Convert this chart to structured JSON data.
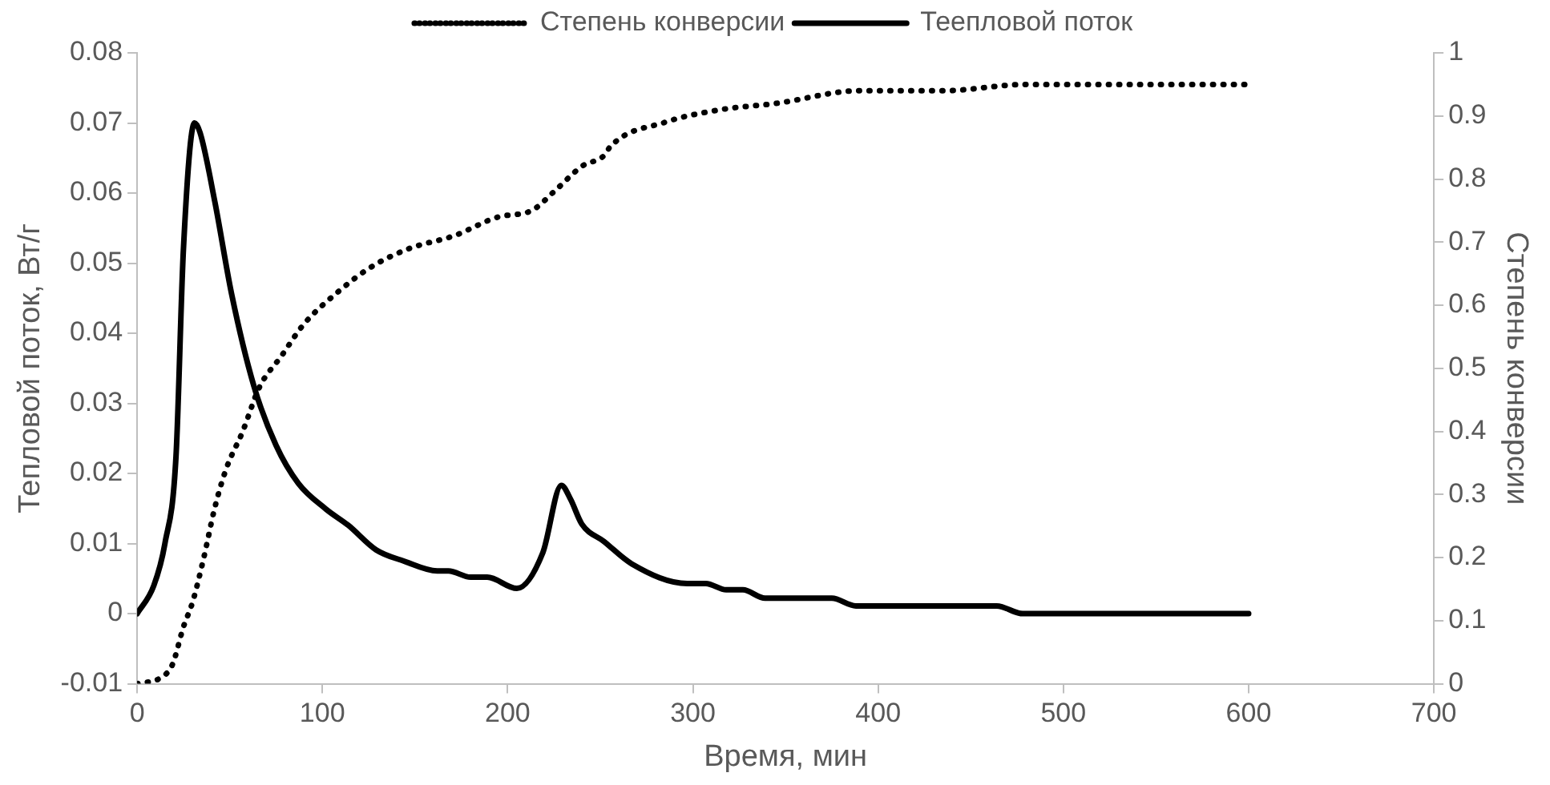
{
  "chart_data": {
    "type": "line",
    "xlabel": "Время, мин",
    "ylabel": "Тепловой поток, Вт/г",
    "y2label": "Степень конверсии",
    "xlim": [
      0,
      700
    ],
    "xticks": [
      0,
      100,
      200,
      300,
      400,
      500,
      600,
      700
    ],
    "ylim": [
      -0.01,
      0.08
    ],
    "yticks": [
      -0.01,
      0,
      0.01,
      0.02,
      0.03,
      0.04,
      0.05,
      0.06,
      0.07,
      0.08
    ],
    "y2lim": [
      0,
      1
    ],
    "y2ticks": [
      0,
      0.1,
      0.2,
      0.3,
      0.4,
      0.5,
      0.6,
      0.7,
      0.8,
      0.9,
      1
    ],
    "grid": false,
    "legend": "top",
    "marker": "none",
    "series": [
      {
        "name": "Степень конверсии",
        "color": "#000000",
        "axis": "y2",
        "line_style": "dotted",
        "x": [
          0,
          13,
          19,
          25,
          30,
          36,
          42,
          48,
          57,
          66,
          78,
          90,
          108,
          126,
          147,
          171,
          195,
          213,
          225,
          240,
          253,
          255,
          285,
          315,
          345,
          390,
          435,
          480,
          600
        ],
        "values": [
          0,
          0.01,
          0.03,
          0.09,
          0.13,
          0.2,
          0.28,
          0.34,
          0.4,
          0.47,
          0.52,
          0.57,
          0.62,
          0.66,
          0.69,
          0.71,
          0.74,
          0.75,
          0.78,
          0.82,
          0.84,
          0.85,
          0.89,
          0.91,
          0.92,
          0.94,
          0.94,
          0.95,
          0.95
        ]
      },
      {
        "name": "Теепловой поток",
        "color": "#000000",
        "axis": "y",
        "line_style": "solid",
        "x": [
          0,
          9,
          15,
          21,
          25,
          31,
          34,
          42,
          51,
          63,
          75,
          87,
          102,
          114,
          129,
          144,
          162,
          168,
          180,
          189,
          205,
          219,
          229,
          234,
          240,
          252,
          267,
          297,
          307,
          318,
          327,
          339,
          375,
          388,
          464,
          478,
          600
        ],
        "values": [
          0,
          0.004,
          0.01,
          0.0225,
          0.052,
          0.07,
          0.0686,
          0.0587,
          0.0456,
          0.0325,
          0.024,
          0.0186,
          0.0149,
          0.0126,
          0.0091,
          0.0075,
          0.0061,
          0.0061,
          0.0052,
          0.0052,
          0.0036,
          0.0087,
          0.0183,
          0.0163,
          0.0128,
          0.0103,
          0.0071,
          0.0043,
          0.0043,
          0.0034,
          0.0034,
          0.0022,
          0.0022,
          0.0011,
          0.0011,
          0,
          0
        ]
      }
    ]
  }
}
